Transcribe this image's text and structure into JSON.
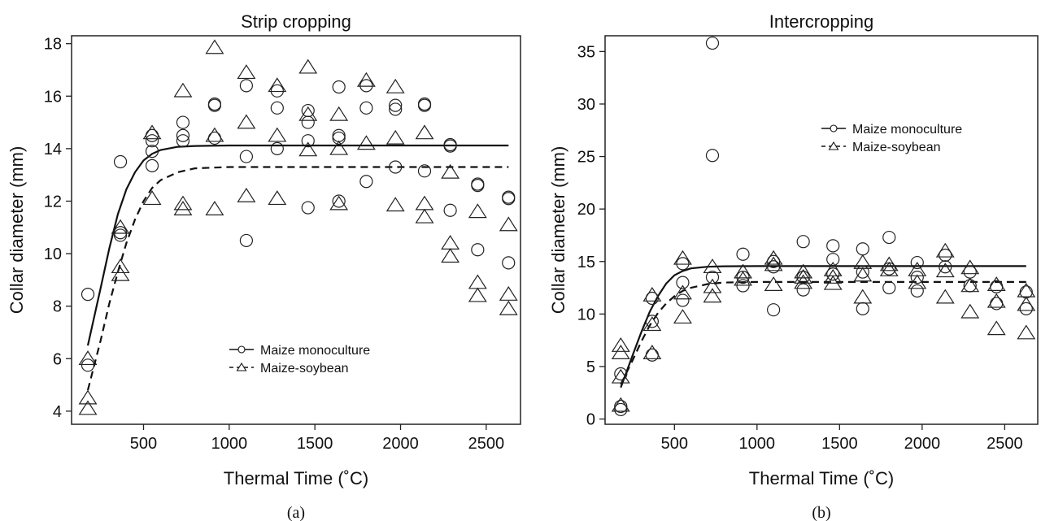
{
  "chart_data": [
    {
      "type": "scatter",
      "title": "Strip cropping",
      "xlabel": "Thermal Time (˚C)",
      "ylabel": "Collar diameter (mm)",
      "caption": "(a)",
      "xlim": [
        80,
        2700
      ],
      "ylim": [
        3.5,
        18.3
      ],
      "xticks": [
        500,
        1000,
        1500,
        2000,
        2500
      ],
      "yticks": [
        4,
        6,
        8,
        10,
        12,
        14,
        16,
        18
      ],
      "legend_position": "lower-center",
      "series": [
        {
          "name": "Maize monoculture",
          "marker": "circle",
          "line": "solid",
          "points": [
            [
              175,
              8.45
            ],
            [
              175,
              5.75
            ],
            [
              365,
              13.5
            ],
            [
              365,
              10.8
            ],
            [
              365,
              10.7
            ],
            [
              550,
              14.5
            ],
            [
              550,
              14.3
            ],
            [
              550,
              13.9
            ],
            [
              550,
              13.35
            ],
            [
              730,
              15.0
            ],
            [
              730,
              14.5
            ],
            [
              730,
              14.3
            ],
            [
              915,
              15.7
            ],
            [
              915,
              15.65
            ],
            [
              915,
              14.4
            ],
            [
              1100,
              16.4
            ],
            [
              1100,
              13.7
            ],
            [
              1100,
              10.5
            ],
            [
              1280,
              16.2
            ],
            [
              1280,
              15.55
            ],
            [
              1280,
              14.0
            ],
            [
              1460,
              15.45
            ],
            [
              1460,
              15.0
            ],
            [
              1460,
              14.3
            ],
            [
              1460,
              11.75
            ],
            [
              1640,
              16.35
            ],
            [
              1640,
              14.5
            ],
            [
              1640,
              14.4
            ],
            [
              1640,
              12.0
            ],
            [
              1800,
              16.4
            ],
            [
              1800,
              15.55
            ],
            [
              1800,
              12.75
            ],
            [
              1970,
              15.65
            ],
            [
              1970,
              15.5
            ],
            [
              1970,
              13.3
            ],
            [
              2140,
              15.7
            ],
            [
              2140,
              15.65
            ],
            [
              2140,
              13.15
            ],
            [
              2290,
              14.15
            ],
            [
              2290,
              14.1
            ],
            [
              2290,
              11.65
            ],
            [
              2450,
              12.65
            ],
            [
              2450,
              12.6
            ],
            [
              2450,
              10.15
            ],
            [
              2630,
              12.15
            ],
            [
              2630,
              12.1
            ],
            [
              2630,
              9.65
            ]
          ]
        },
        {
          "name": "Maize-soybean",
          "marker": "triangle",
          "line": "dashed",
          "points": [
            [
              175,
              6.0
            ],
            [
              175,
              4.5
            ],
            [
              175,
              4.1
            ],
            [
              365,
              11.0
            ],
            [
              365,
              9.5
            ],
            [
              365,
              9.2
            ],
            [
              550,
              14.6
            ],
            [
              550,
              12.1
            ],
            [
              730,
              16.2
            ],
            [
              730,
              11.9
            ],
            [
              730,
              11.7
            ],
            [
              915,
              17.85
            ],
            [
              915,
              14.5
            ],
            [
              915,
              11.7
            ],
            [
              1100,
              16.9
            ],
            [
              1100,
              15.0
            ],
            [
              1100,
              12.2
            ],
            [
              1280,
              16.4
            ],
            [
              1280,
              14.5
            ],
            [
              1280,
              12.1
            ],
            [
              1460,
              17.1
            ],
            [
              1460,
              15.3
            ],
            [
              1460,
              13.95
            ],
            [
              1640,
              15.3
            ],
            [
              1640,
              14.0
            ],
            [
              1640,
              11.9
            ],
            [
              1800,
              16.6
            ],
            [
              1800,
              14.2
            ],
            [
              1970,
              16.35
            ],
            [
              1970,
              14.4
            ],
            [
              1970,
              11.85
            ],
            [
              2140,
              14.6
            ],
            [
              2140,
              11.9
            ],
            [
              2140,
              11.4
            ],
            [
              2290,
              13.1
            ],
            [
              2290,
              10.4
            ],
            [
              2290,
              9.9
            ],
            [
              2450,
              11.6
            ],
            [
              2450,
              8.9
            ],
            [
              2450,
              8.4
            ],
            [
              2630,
              11.1
            ],
            [
              2630,
              8.45
            ],
            [
              2630,
              7.9
            ]
          ]
        }
      ],
      "fit_curves": [
        {
          "name": "Maize monoculture",
          "style": "solid",
          "points": [
            [
              175,
              6.5
            ],
            [
              250,
              8.7
            ],
            [
              300,
              10.2
            ],
            [
              350,
              11.5
            ],
            [
              400,
              12.45
            ],
            [
              450,
              13.1
            ],
            [
              500,
              13.55
            ],
            [
              550,
              13.8
            ],
            [
              600,
              13.95
            ],
            [
              700,
              14.07
            ],
            [
              800,
              14.1
            ],
            [
              1000,
              14.12
            ],
            [
              2630,
              14.12
            ]
          ]
        },
        {
          "name": "Maize-soybean",
          "style": "dashed",
          "points": [
            [
              175,
              4.8
            ],
            [
              250,
              6.7
            ],
            [
              300,
              8.1
            ],
            [
              350,
              9.3
            ],
            [
              400,
              10.4
            ],
            [
              450,
              11.3
            ],
            [
              500,
              12.0
            ],
            [
              550,
              12.5
            ],
            [
              600,
              12.8
            ],
            [
              700,
              13.1
            ],
            [
              800,
              13.25
            ],
            [
              1000,
              13.3
            ],
            [
              2630,
              13.3
            ]
          ]
        }
      ]
    },
    {
      "type": "scatter",
      "title": "Intercropping",
      "xlabel": "Thermal Time (˚C)",
      "ylabel": "Collar diameter (mm)",
      "caption": "(b)",
      "xlim": [
        80,
        2700
      ],
      "ylim": [
        -0.5,
        36.5
      ],
      "xticks": [
        500,
        1000,
        1500,
        2000,
        2500
      ],
      "yticks": [
        0,
        5,
        10,
        15,
        20,
        25,
        30,
        35
      ],
      "legend_position": "top-right",
      "series": [
        {
          "name": "Maize monoculture",
          "marker": "circle",
          "line": "solid",
          "points": [
            [
              175,
              4.3
            ],
            [
              175,
              1.2
            ],
            [
              175,
              0.9
            ],
            [
              365,
              11.5
            ],
            [
              365,
              9.3
            ],
            [
              365,
              6.1
            ],
            [
              550,
              14.8
            ],
            [
              550,
              13.0
            ],
            [
              550,
              11.3
            ],
            [
              730,
              35.8
            ],
            [
              730,
              25.1
            ],
            [
              730,
              13.5
            ],
            [
              915,
              15.7
            ],
            [
              915,
              13.5
            ],
            [
              915,
              12.7
            ],
            [
              1100,
              15.0
            ],
            [
              1100,
              14.5
            ],
            [
              1100,
              10.4
            ],
            [
              1280,
              16.9
            ],
            [
              1280,
              13.5
            ],
            [
              1280,
              12.3
            ],
            [
              1460,
              16.5
            ],
            [
              1460,
              15.2
            ],
            [
              1460,
              13.8
            ],
            [
              1640,
              16.2
            ],
            [
              1640,
              14.0
            ],
            [
              1640,
              10.5
            ],
            [
              1800,
              17.3
            ],
            [
              1800,
              14.3
            ],
            [
              1800,
              12.5
            ],
            [
              1970,
              14.9
            ],
            [
              1970,
              13.5
            ],
            [
              1970,
              12.2
            ],
            [
              2140,
              15.6
            ],
            [
              2140,
              14.5
            ],
            [
              2290,
              14.0
            ],
            [
              2290,
              12.7
            ],
            [
              2450,
              12.6
            ],
            [
              2450,
              11.0
            ],
            [
              2630,
              12.1
            ],
            [
              2630,
              10.5
            ]
          ]
        },
        {
          "name": "Maize-soybean",
          "marker": "triangle",
          "line": "dashed",
          "points": [
            [
              175,
              7.0
            ],
            [
              175,
              6.3
            ],
            [
              175,
              4.0
            ],
            [
              175,
              1.3
            ],
            [
              365,
              11.8
            ],
            [
              365,
              9.0
            ],
            [
              365,
              6.3
            ],
            [
              550,
              15.3
            ],
            [
              550,
              12.0
            ],
            [
              550,
              9.7
            ],
            [
              730,
              14.5
            ],
            [
              730,
              12.6
            ],
            [
              730,
              11.7
            ],
            [
              915,
              14.0
            ],
            [
              915,
              13.3
            ],
            [
              1100,
              15.3
            ],
            [
              1100,
              14.7
            ],
            [
              1100,
              12.8
            ],
            [
              1280,
              14.0
            ],
            [
              1280,
              13.5
            ],
            [
              1280,
              13.0
            ],
            [
              1460,
              14.2
            ],
            [
              1460,
              13.5
            ],
            [
              1460,
              12.9
            ],
            [
              1640,
              14.9
            ],
            [
              1640,
              13.7
            ],
            [
              1640,
              11.6
            ],
            [
              1800,
              14.7
            ],
            [
              1800,
              14.2
            ],
            [
              1970,
              14.2
            ],
            [
              1970,
              13.0
            ],
            [
              2140,
              16.0
            ],
            [
              2140,
              14.1
            ],
            [
              2140,
              11.6
            ],
            [
              2290,
              14.4
            ],
            [
              2290,
              12.7
            ],
            [
              2290,
              10.2
            ],
            [
              2450,
              12.8
            ],
            [
              2450,
              11.2
            ],
            [
              2450,
              8.6
            ],
            [
              2630,
              12.2
            ],
            [
              2630,
              10.9
            ],
            [
              2630,
              8.2
            ]
          ]
        }
      ],
      "fit_curves": [
        {
          "name": "Maize monoculture",
          "style": "solid",
          "points": [
            [
              175,
              3.0
            ],
            [
              250,
              6.2
            ],
            [
              300,
              8.3
            ],
            [
              350,
              10.2
            ],
            [
              400,
              11.7
            ],
            [
              450,
              12.9
            ],
            [
              500,
              13.7
            ],
            [
              550,
              14.1
            ],
            [
              600,
              14.35
            ],
            [
              700,
              14.5
            ],
            [
              800,
              14.55
            ],
            [
              1000,
              14.56
            ],
            [
              2630,
              14.56
            ]
          ]
        },
        {
          "name": "Maize-soybean",
          "style": "dashed",
          "points": [
            [
              175,
              3.3
            ],
            [
              250,
              5.7
            ],
            [
              300,
              7.4
            ],
            [
              350,
              8.9
            ],
            [
              400,
              10.1
            ],
            [
              450,
              11.0
            ],
            [
              500,
              11.7
            ],
            [
              550,
              12.2
            ],
            [
              600,
              12.5
            ],
            [
              700,
              12.85
            ],
            [
              800,
              13.0
            ],
            [
              1000,
              13.05
            ],
            [
              2630,
              13.05
            ]
          ]
        }
      ]
    }
  ]
}
